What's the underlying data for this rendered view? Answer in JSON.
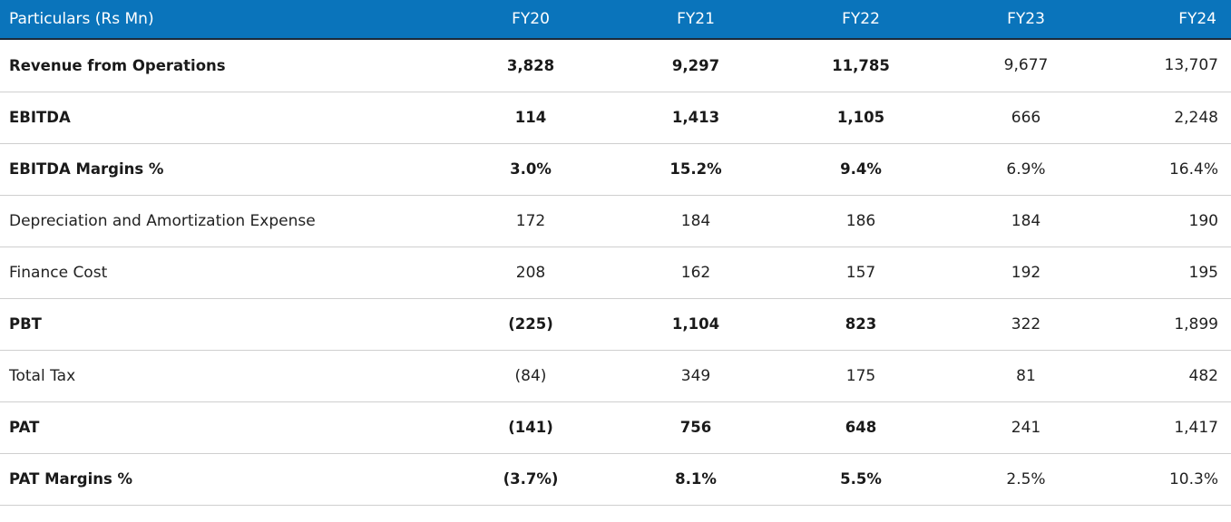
{
  "table": {
    "headers": [
      "Particulars (Rs Mn)",
      "FY20",
      "FY21",
      "FY22",
      "FY23",
      "FY24"
    ],
    "rows": [
      {
        "label": "Revenue from Operations",
        "values": [
          "3,828",
          "9,297",
          "11,785",
          "9,677",
          "13,707"
        ],
        "bold": true
      },
      {
        "label": "EBITDA",
        "values": [
          "114",
          "1,413",
          "1,105",
          "666",
          "2,248"
        ],
        "bold": true
      },
      {
        "label": "EBITDA Margins %",
        "values": [
          "3.0%",
          "15.2%",
          "9.4%",
          "6.9%",
          "16.4%"
        ],
        "bold": true
      },
      {
        "label": "Depreciation and Amortization Expense",
        "values": [
          "172",
          "184",
          "186",
          "184",
          "190"
        ],
        "bold": false
      },
      {
        "label": "Finance Cost",
        "values": [
          "208",
          "162",
          "157",
          "192",
          "195"
        ],
        "bold": false
      },
      {
        "label": "PBT",
        "values": [
          "(225)",
          "1,104",
          "823",
          "322",
          "1,899"
        ],
        "bold": true
      },
      {
        "label": "Total Tax",
        "values": [
          "(84)",
          "349",
          "175",
          "81",
          "482"
        ],
        "bold": false
      },
      {
        "label": "PAT",
        "values": [
          "(141)",
          "756",
          "648",
          "241",
          "1,417"
        ],
        "bold": true
      },
      {
        "label": "PAT Margins %",
        "values": [
          "(3.7%)",
          "8.1%",
          "5.5%",
          "2.5%",
          "10.3%"
        ],
        "bold": true
      }
    ]
  },
  "colors": {
    "header_bg": "#0a74bb",
    "header_text": "#ffffff",
    "row_divider": "#cfcfcf"
  }
}
